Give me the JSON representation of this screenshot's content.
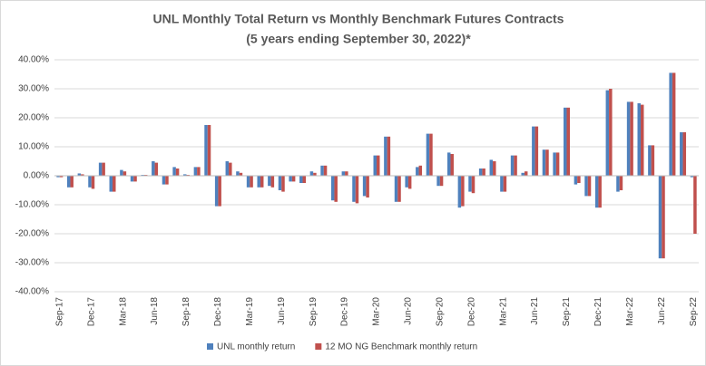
{
  "chart_data": {
    "type": "bar",
    "title": "UNL Monthly Total Return vs Monthly Benchmark Futures Contracts",
    "subtitle": "(5 years ending September 30, 2022)*",
    "categories": [
      "Sep-17",
      null,
      null,
      "Dec-17",
      null,
      null,
      "Mar-18",
      null,
      null,
      "Jun-18",
      null,
      null,
      "Sep-18",
      null,
      null,
      "Dec-18",
      null,
      null,
      "Mar-19",
      null,
      null,
      "Jun-19",
      null,
      null,
      "Sep-19",
      null,
      null,
      "Dec-19",
      null,
      null,
      "Mar-20",
      null,
      null,
      "Jun-20",
      null,
      null,
      "Sep-20",
      null,
      null,
      "Dec-20",
      null,
      null,
      "Mar-21",
      null,
      null,
      "Jun-21",
      null,
      null,
      "Sep-21",
      null,
      null,
      "Dec-21",
      null,
      null,
      "Mar-22",
      null,
      null,
      "Jun-22",
      null,
      null,
      "Sep-22"
    ],
    "series": [
      {
        "name": "UNL monthly return",
        "color": "#4f81bd",
        "values": [
          -0.5,
          -4,
          0.8,
          -4,
          4.5,
          -5.5,
          2,
          -2,
          0.3,
          5,
          -3,
          3,
          0.5,
          3,
          17.5,
          -10.5,
          5,
          1.5,
          -4,
          -4,
          -3.5,
          -5,
          -2,
          -2.5,
          1.5,
          3.5,
          -8.5,
          1.5,
          -9,
          -7,
          7,
          13.5,
          -9,
          -4,
          3,
          14.5,
          -3.5,
          8,
          -11,
          -5.5,
          2.5,
          5.5,
          -5.5,
          7,
          1,
          17,
          9,
          8,
          23.5,
          -3,
          -7,
          -11,
          29.5,
          -5.5,
          25.5,
          25,
          10.5,
          -28.5,
          35.5,
          15,
          -0.5
        ]
      },
      {
        "name": "12 MO NG Benchmark monthly return",
        "color": "#c0504d",
        "values": [
          -0.5,
          -4,
          0.5,
          -4.5,
          4.5,
          -5.5,
          1.5,
          -2,
          0.3,
          4.5,
          -3,
          2.5,
          0.3,
          3,
          17.5,
          -10.5,
          4.5,
          1,
          -4,
          -4,
          -4,
          -5.5,
          -2,
          -2.5,
          1,
          3.5,
          -9,
          1.5,
          -9.5,
          -7.5,
          7,
          13.5,
          -9,
          -4.5,
          3.5,
          14.5,
          -3.5,
          7.5,
          -10.5,
          -6,
          2.5,
          5,
          -5.5,
          7,
          1.5,
          17,
          9,
          8,
          23.5,
          -2.5,
          -7,
          -11,
          30,
          -5,
          25.5,
          24.5,
          10.5,
          -28.5,
          35.5,
          15,
          -20
        ]
      }
    ],
    "ylim": [
      -40,
      40
    ],
    "yticks": [
      {
        "value": -40,
        "label": "-40.00%"
      },
      {
        "value": -30,
        "label": "-30.00%"
      },
      {
        "value": -20,
        "label": "-20.00%"
      },
      {
        "value": -10,
        "label": "-10.00%"
      },
      {
        "value": 0,
        "label": "0.00%"
      },
      {
        "value": 10,
        "label": "10.00%"
      },
      {
        "value": 20,
        "label": "20.00%"
      },
      {
        "value": 30,
        "label": "30.00%"
      },
      {
        "value": 40,
        "label": "40.00%"
      }
    ],
    "grid": true,
    "legend": "bottom"
  }
}
